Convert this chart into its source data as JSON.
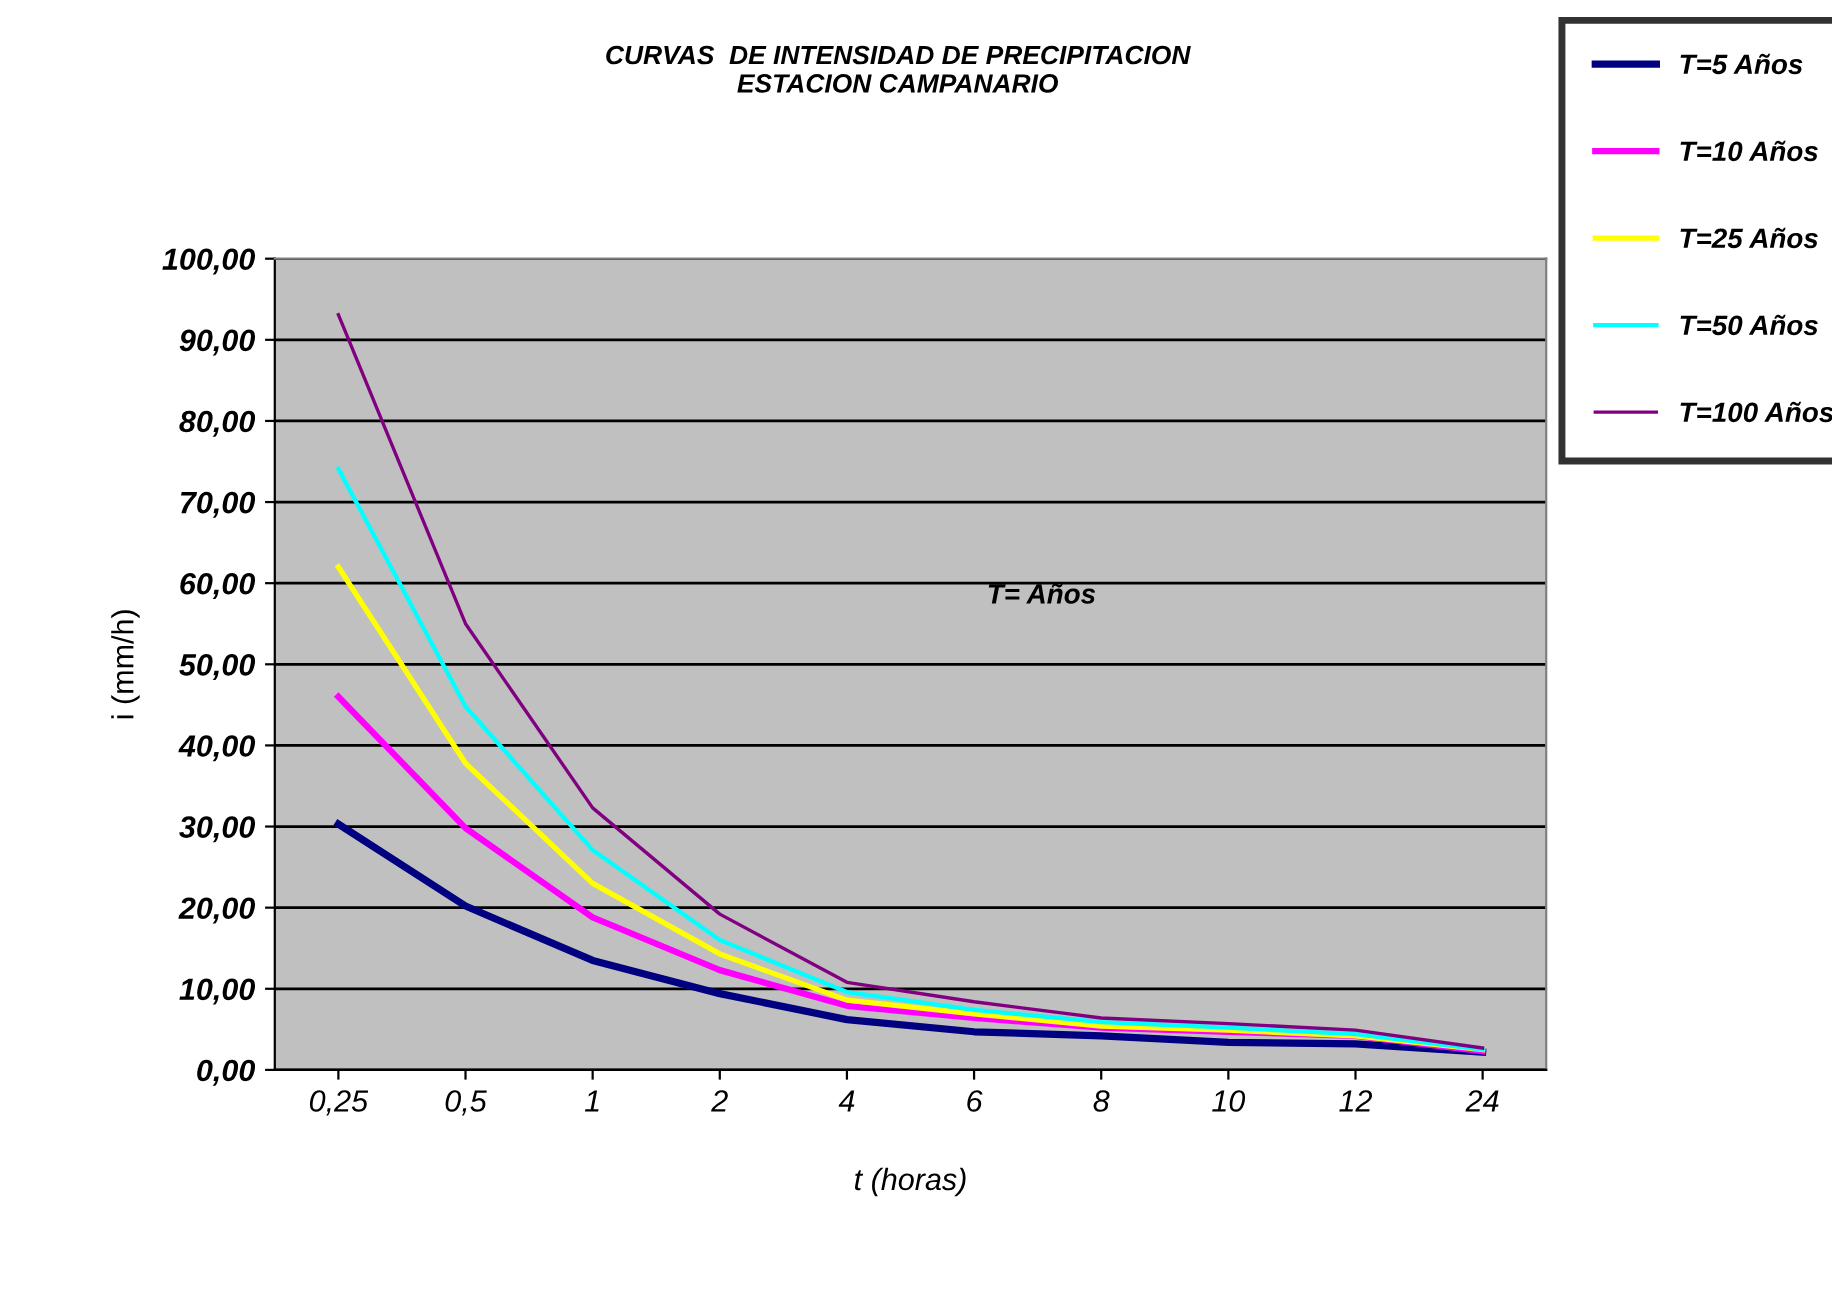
{
  "chart_data": {
    "type": "line",
    "title": "CURVAS  DE INTENSIDAD DE PRECIPITACION\nESTACION CAMPANARIO",
    "xlabel": "t (horas)",
    "ylabel": "i (mm/h)",
    "categories": [
      "0,25",
      "0,5",
      "1",
      "2",
      "4",
      "6",
      "8",
      "10",
      "12",
      "24"
    ],
    "series": [
      {
        "name": "T=5 Años",
        "color": "#000080",
        "values": [
          30.3,
          20.2,
          13.5,
          9.4,
          6.2,
          4.7,
          4.2,
          3.4,
          3.2,
          2.2
        ]
      },
      {
        "name": "T=10 Años",
        "color": "#ff00ff",
        "values": [
          46.0,
          29.8,
          18.8,
          12.3,
          7.9,
          6.4,
          5.2,
          4.7,
          4.2,
          2.3
        ]
      },
      {
        "name": "T=25 Años",
        "color": "#ffff00",
        "values": [
          62.0,
          37.8,
          23.0,
          14.3,
          8.6,
          6.9,
          5.4,
          4.9,
          4.2,
          2.5
        ]
      },
      {
        "name": "T=50 Años",
        "color": "#00ffff",
        "values": [
          74.1,
          44.8,
          27.1,
          16.0,
          9.6,
          7.4,
          5.9,
          5.2,
          4.4,
          2.5
        ]
      },
      {
        "name": "T=100 Años",
        "color": "#800080",
        "values": [
          93.1,
          55.0,
          32.3,
          19.2,
          10.8,
          8.4,
          6.4,
          5.7,
          4.9,
          2.7
        ]
      }
    ],
    "ylim": [
      0,
      100
    ],
    "yticks": [
      {
        "value": 0,
        "label": "0,00"
      },
      {
        "value": 10,
        "label": "10,00"
      },
      {
        "value": 20,
        "label": "20,00"
      },
      {
        "value": 30,
        "label": "30,00"
      },
      {
        "value": 40,
        "label": "40,00"
      },
      {
        "value": 50,
        "label": "50,00"
      },
      {
        "value": 60,
        "label": "60,00"
      },
      {
        "value": 70,
        "label": "70,00"
      },
      {
        "value": 80,
        "label": "80,00"
      },
      {
        "value": 90,
        "label": "90,00"
      },
      {
        "value": 100,
        "label": "100,00"
      }
    ],
    "grid": "y",
    "legend": "right",
    "marker": "none",
    "line_style": "solid",
    "annotations": [
      "T= Años"
    ]
  }
}
